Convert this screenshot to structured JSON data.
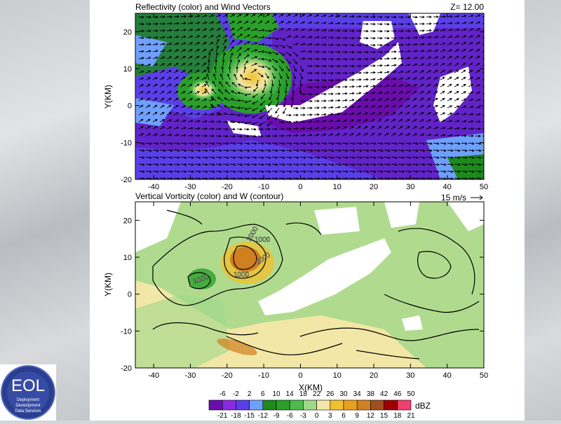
{
  "logo": {
    "text": "EOL",
    "subtext": [
      "Deployment",
      "Development",
      "Data Services"
    ]
  },
  "chart_data": [
    {
      "type": "heatmap",
      "title": "Reflectivity (color) and Wind Vectors",
      "level_label": "Z= 12.00",
      "ylabel": "Y(KM)",
      "xlabel": "",
      "xlim": [
        -45,
        50
      ],
      "ylim": [
        -20,
        25
      ],
      "x_ticks": [
        -40,
        -30,
        -20,
        -10,
        0,
        10,
        20,
        30,
        40,
        50
      ],
      "y_ticks": [
        -20,
        -10,
        0,
        10,
        20
      ],
      "vector_reference": "15 m/s",
      "features": [
        {
          "kind": "reflectivity_core",
          "x": -14,
          "y": 9,
          "dBZ_max": 30
        },
        {
          "kind": "reflectivity_core",
          "x": -27,
          "y": 5,
          "dBZ_max": 26
        }
      ]
    },
    {
      "type": "heatmap",
      "title": "Vertical Vorticity (color) and W (contour)",
      "xlabel": "X(KM)",
      "ylabel": "Y(KM)",
      "xlim": [
        -45,
        50
      ],
      "ylim": [
        -20,
        25
      ],
      "x_ticks": [
        -40,
        -30,
        -20,
        -10,
        0,
        10,
        20,
        30,
        40,
        50
      ],
      "y_ticks": [
        -20,
        -10,
        0,
        10,
        20
      ],
      "contour_labels": [
        "2000",
        "2000",
        "1000",
        "2000",
        "1000"
      ]
    }
  ],
  "colorbar": {
    "unit": "dBZ",
    "top_labels": [
      "-6",
      "-2",
      "2",
      "6",
      "10",
      "14",
      "18",
      "22",
      "26",
      "30",
      "34",
      "38",
      "42",
      "46",
      "50"
    ],
    "bottom_labels": [
      "-21",
      "-18",
      "-15",
      "-12",
      "-9",
      "-6",
      "-3",
      "0",
      "3",
      "6",
      "9",
      "12",
      "15",
      "18",
      "21"
    ],
    "colors": [
      "#6a0dad",
      "#8a2be2",
      "#5a3fe8",
      "#6fa0ff",
      "#1c8a1c",
      "#2aa02a",
      "#4cbb4c",
      "#9fd88a",
      "#f2e7a6",
      "#f0c030",
      "#e8a020",
      "#d08020",
      "#a05020",
      "#a00000",
      "#f04070"
    ]
  }
}
